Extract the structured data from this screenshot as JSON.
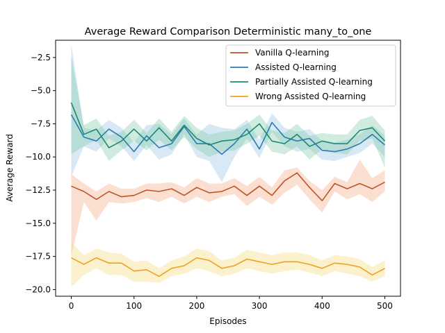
{
  "chart_data": {
    "type": "line",
    "title": "Average Reward Comparison Deterministic many_to_one",
    "xlabel": "Episodes",
    "ylabel": "Average Reward",
    "xlim": [
      -25,
      525
    ],
    "ylim": [
      -20.5,
      -1.2
    ],
    "xticks": [
      0,
      100,
      200,
      300,
      400,
      500
    ],
    "yticks": [
      -20.0,
      -17.5,
      -15.0,
      -12.5,
      -10.0,
      -7.5,
      -5.0,
      -2.5
    ],
    "xtick_labels": [
      "0",
      "100",
      "200",
      "300",
      "400",
      "500"
    ],
    "ytick_labels": [
      "−20.0",
      "−17.5",
      "−15.0",
      "−12.5",
      "−10.0",
      "−7.5",
      "−5.0",
      "−2.5"
    ],
    "grid": false,
    "legend_position": "top-right",
    "x": [
      0,
      20,
      40,
      60,
      80,
      100,
      120,
      140,
      160,
      180,
      200,
      220,
      240,
      260,
      280,
      300,
      320,
      340,
      360,
      380,
      400,
      420,
      440,
      460,
      480,
      500
    ],
    "series": [
      {
        "name": "Vanilla Q-learning",
        "color": "#c0532a",
        "band_color": "#f4a77c",
        "values": [
          -12.2,
          -12.6,
          -13.2,
          -12.6,
          -13.0,
          -12.9,
          -12.5,
          -12.6,
          -12.4,
          -12.9,
          -12.3,
          -12.7,
          -12.6,
          -12.2,
          -12.9,
          -12.2,
          -12.9,
          -11.8,
          -11.2,
          -12.3,
          -13.3,
          -12.0,
          -12.4,
          -12.0,
          -12.4,
          -11.9
        ],
        "lower": [
          -17.5,
          -13.4,
          -14.8,
          -13.4,
          -13.5,
          -13.4,
          -13.1,
          -13.4,
          -13.0,
          -13.5,
          -13.0,
          -13.4,
          -13.0,
          -12.8,
          -13.7,
          -13.0,
          -13.6,
          -12.7,
          -12.1,
          -13.2,
          -14.2,
          -12.6,
          -13.2,
          -12.8,
          -13.4,
          -12.6
        ],
        "upper": [
          -11.3,
          -12.0,
          -12.6,
          -12.0,
          -12.4,
          -12.4,
          -12.0,
          -12.0,
          -11.9,
          -12.3,
          -11.6,
          -12.0,
          -12.0,
          -11.6,
          -12.2,
          -11.5,
          -12.3,
          -11.0,
          -10.8,
          -11.8,
          -12.5,
          -11.5,
          -11.9,
          -10.2,
          -11.6,
          -11.0
        ]
      },
      {
        "name": "Assisted Q-learning",
        "color": "#2b7bb0",
        "band_color": "#8fc1e3",
        "values": [
          -6.8,
          -8.5,
          -8.8,
          -7.9,
          -8.5,
          -9.6,
          -8.4,
          -9.3,
          -9.0,
          -7.7,
          -9.0,
          -9.0,
          -9.8,
          -9.0,
          -7.9,
          -9.4,
          -7.4,
          -8.5,
          -8.8,
          -8.6,
          -9.5,
          -9.6,
          -9.4,
          -9.0,
          -8.3,
          -9.1
        ],
        "lower": [
          -11.5,
          -9.2,
          -9.6,
          -8.6,
          -9.2,
          -10.3,
          -9.1,
          -10.2,
          -9.8,
          -8.3,
          -10.0,
          -10.3,
          -11.9,
          -10.0,
          -8.6,
          -10.1,
          -8.1,
          -9.2,
          -9.6,
          -9.4,
          -10.2,
          -10.3,
          -10.0,
          -9.7,
          -9.0,
          -10.0
        ],
        "upper": [
          -1.5,
          -7.8,
          -8.0,
          -7.2,
          -7.8,
          -8.9,
          -7.6,
          -7.5,
          -8.3,
          -7.1,
          -8.3,
          -7.5,
          -7.8,
          -7.9,
          -7.2,
          -8.7,
          -6.7,
          -7.8,
          -8.1,
          -7.9,
          -8.8,
          -8.9,
          -8.7,
          -8.3,
          -7.6,
          -8.4
        ]
      },
      {
        "name": "Partially Assisted Q-learning",
        "color": "#1b8a72",
        "band_color": "#7cc8a0",
        "values": [
          -5.9,
          -8.3,
          -7.9,
          -9.3,
          -8.8,
          -7.9,
          -8.8,
          -7.8,
          -8.8,
          -7.6,
          -8.6,
          -9.1,
          -8.8,
          -8.7,
          -8.3,
          -7.5,
          -8.8,
          -9.0,
          -8.3,
          -9.2,
          -8.8,
          -9.0,
          -9.0,
          -8.0,
          -7.8,
          -8.8
        ],
        "lower": [
          -9.8,
          -9.2,
          -8.7,
          -10.3,
          -9.5,
          -8.8,
          -9.5,
          -8.7,
          -9.5,
          -8.5,
          -9.4,
          -10.0,
          -9.6,
          -9.5,
          -9.0,
          -8.4,
          -9.6,
          -9.8,
          -9.2,
          -10.2,
          -9.4,
          -9.7,
          -9.8,
          -8.8,
          -8.6,
          -10.8
        ],
        "upper": [
          -2.4,
          -7.6,
          -7.1,
          -8.4,
          -8.1,
          -7.2,
          -8.2,
          -7.1,
          -8.1,
          -6.9,
          -7.8,
          -8.3,
          -8.1,
          -8.0,
          -7.5,
          -6.8,
          -8.0,
          -8.2,
          -7.5,
          -8.4,
          -8.2,
          -8.3,
          -8.3,
          -7.2,
          -6.9,
          -8.0
        ]
      },
      {
        "name": "Wrong Assisted Q-learning",
        "color": "#f0a020",
        "band_color": "#f7d870",
        "values": [
          -17.6,
          -18.1,
          -17.6,
          -18.0,
          -18.0,
          -18.6,
          -18.5,
          -19.0,
          -18.4,
          -18.2,
          -17.6,
          -17.8,
          -18.4,
          -18.2,
          -17.7,
          -17.9,
          -18.1,
          -17.9,
          -17.9,
          -18.1,
          -18.4,
          -18.0,
          -18.1,
          -18.3,
          -18.9,
          -18.4
        ],
        "lower": [
          -19.8,
          -18.9,
          -18.4,
          -18.9,
          -18.9,
          -19.4,
          -19.4,
          -19.5,
          -19.0,
          -18.8,
          -18.4,
          -18.6,
          -19.0,
          -18.8,
          -18.4,
          -18.6,
          -18.8,
          -18.6,
          -18.5,
          -18.7,
          -19.0,
          -18.6,
          -18.8,
          -19.0,
          -19.4,
          -19.0
        ],
        "upper": [
          -16.4,
          -17.4,
          -16.9,
          -17.2,
          -17.3,
          -17.9,
          -17.8,
          -18.4,
          -17.8,
          -17.5,
          -16.9,
          -17.1,
          -17.8,
          -17.6,
          -17.0,
          -17.2,
          -17.4,
          -17.2,
          -17.2,
          -17.4,
          -17.8,
          -17.4,
          -17.5,
          -17.7,
          -18.3,
          -17.8
        ]
      }
    ]
  }
}
